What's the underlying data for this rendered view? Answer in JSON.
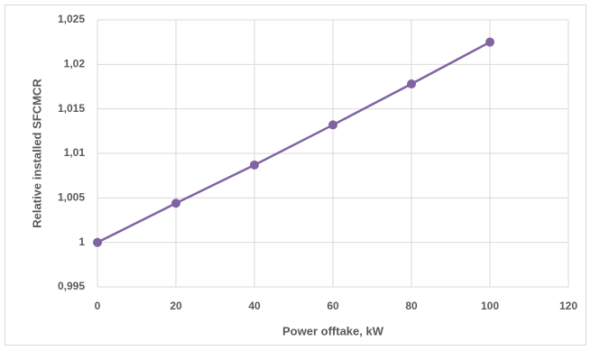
{
  "chart_data": {
    "type": "line",
    "x": [
      0,
      20,
      40,
      60,
      80,
      100
    ],
    "values": [
      1.0,
      1.0044,
      1.0087,
      1.0132,
      1.0178,
      1.0225
    ],
    "color": "#8064a2",
    "xlabel": "Power offtake, kW",
    "ylabel": "Relative installed SFCMCR",
    "xlim": [
      0,
      120
    ],
    "xticks": [
      0,
      20,
      40,
      60,
      80,
      100,
      120
    ],
    "ylim": [
      0.995,
      1.025
    ],
    "yticks": [
      {
        "value": 0.995,
        "label": "0,995"
      },
      1,
      {
        "value": 1.005,
        "label": "1,005"
      },
      {
        "value": 1.01,
        "label": "1,01"
      },
      {
        "value": 1.015,
        "label": "1,015"
      },
      {
        "value": 1.02,
        "label": "1,02"
      },
      {
        "value": 1.025,
        "label": "1,025"
      }
    ],
    "grid": true
  }
}
